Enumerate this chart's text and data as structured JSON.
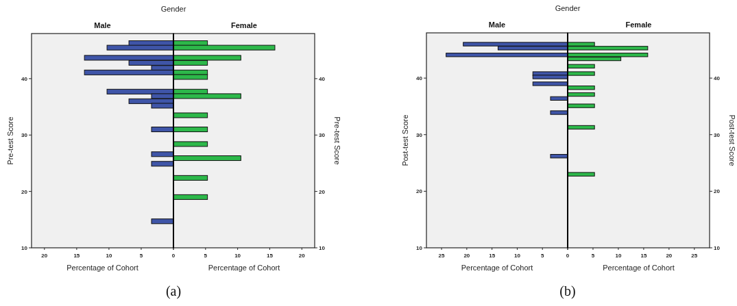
{
  "chart_data": [
    {
      "type": "bar",
      "orientation": "horizontal",
      "title": "Male",
      "annotations": [
        "Gender",
        "(a)"
      ],
      "ylabel": "Pre-test Score",
      "xlabel": "Percentage of Cohort",
      "xlim": [
        22,
        0
      ],
      "xticks": [
        20,
        15,
        10,
        5,
        0
      ],
      "ylim": [
        10,
        48
      ],
      "yticks": [
        10,
        20,
        30,
        40
      ],
      "x": [
        46.3,
        45.5,
        43.7,
        42.8,
        41.9,
        41.1,
        37.7,
        36.9,
        36.0,
        35.2,
        31.0,
        26.6,
        24.9,
        14.7
      ],
      "series": [
        {
          "color": "#3f55a8",
          "values": [
            6.9,
            10.3,
            13.8,
            6.9,
            3.4,
            13.8,
            10.3,
            3.4,
            6.9,
            3.4,
            3.4,
            3.4,
            3.4,
            3.4
          ]
        }
      ]
    },
    {
      "type": "bar",
      "orientation": "horizontal",
      "title": "Female",
      "ylabel": "Pre-test Score",
      "xlabel": "Percentage of Cohort",
      "xlim": [
        0,
        22
      ],
      "xticks": [
        {
          "value": 0,
          "label": null
        },
        5,
        10,
        15,
        20
      ],
      "ylim": [
        10,
        48
      ],
      "yticks": [
        10,
        20,
        30,
        40
      ],
      "x": [
        46.3,
        45.5,
        43.7,
        42.8,
        41.1,
        40.3,
        37.7,
        36.9,
        33.5,
        31.0,
        28.4,
        25.9,
        22.4,
        19.0
      ],
      "series": [
        {
          "color": "#2db84a",
          "values": [
            5.3,
            15.8,
            10.5,
            5.3,
            5.3,
            5.3,
            5.3,
            10.5,
            5.3,
            5.3,
            5.3,
            10.5,
            5.3,
            5.3
          ]
        }
      ]
    },
    {
      "type": "bar",
      "orientation": "horizontal",
      "title": "Male",
      "annotations": [
        "Gender",
        "(b)"
      ],
      "ylabel": "Post-test Score",
      "xlabel": "Percentage of Cohort",
      "xlim": [
        28,
        0
      ],
      "xticks": [
        25,
        20,
        15,
        10,
        5,
        0
      ],
      "ylim": [
        10,
        48
      ],
      "yticks": [
        10,
        20,
        30,
        40
      ],
      "x": [
        46.0,
        45.3,
        44.1,
        40.8,
        40.2,
        39.0,
        36.4,
        33.9,
        26.2
      ],
      "series": [
        {
          "color": "#3f55a8",
          "values": [
            20.7,
            13.8,
            24.1,
            6.9,
            6.9,
            6.9,
            3.4,
            3.4,
            3.4
          ]
        }
      ]
    },
    {
      "type": "bar",
      "orientation": "horizontal",
      "title": "Female",
      "ylabel": "Post-test Score",
      "xlabel": "Percentage of Cohort",
      "xlim": [
        0,
        28
      ],
      "xticks": [
        {
          "value": 0,
          "label": null
        },
        5,
        10,
        15,
        20,
        25
      ],
      "ylim": [
        10,
        48
      ],
      "yticks": [
        10,
        20,
        30,
        40
      ],
      "x": [
        46.0,
        45.3,
        44.1,
        43.4,
        42.1,
        40.8,
        38.3,
        37.1,
        35.1,
        31.3,
        23.0
      ],
      "series": [
        {
          "color": "#2db84a",
          "values": [
            5.3,
            15.8,
            15.8,
            10.5,
            5.3,
            5.3,
            5.3,
            5.3,
            5.3,
            5.3,
            5.3
          ]
        }
      ]
    }
  ]
}
